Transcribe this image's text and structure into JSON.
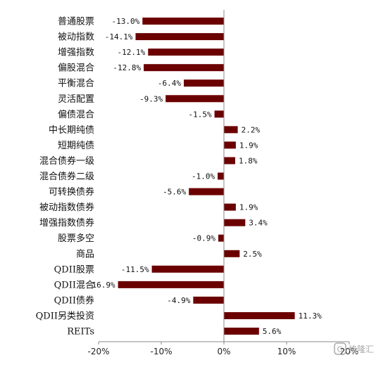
{
  "chart_data": {
    "type": "bar",
    "orientation": "horizontal",
    "categories": [
      "普通股票",
      "被动指数",
      "增强指数",
      "偏股混合",
      "平衡混合",
      "灵活配置",
      "偏债混合",
      "中长期纯债",
      "短期纯债",
      "混合债券一级",
      "混合债券二级",
      "可转换债券",
      "被动指数债券",
      "增强指数债券",
      "股票多空",
      "商品",
      "QDII股票",
      "QDII混合",
      "QDII债券",
      "QDII另类投资",
      "REITs"
    ],
    "values": [
      -13.0,
      -14.1,
      -12.1,
      -12.8,
      -6.4,
      -9.3,
      -1.5,
      2.2,
      1.9,
      1.8,
      -1.0,
      -5.6,
      1.9,
      3.4,
      -0.9,
      2.5,
      -11.5,
      -16.9,
      -4.9,
      11.3,
      5.6
    ],
    "data_labels": [
      "-13.0%",
      "-14.1%",
      "-12.1%",
      "-12.8%",
      "-6.4%",
      "-9.3%",
      "-1.5%",
      "2.2%",
      "1.9%",
      "1.8%",
      "-1.0%",
      "-5.6%",
      "1.9%",
      "3.4%",
      "-0.9%",
      "2.5%",
      "-11.5%",
      "-16.9%",
      "-4.9%",
      "11.3%",
      "5.6%"
    ],
    "xlim": [
      -20,
      20
    ],
    "xticks": [
      -20,
      -10,
      0,
      10,
      20
    ],
    "xtick_labels": [
      "-20%",
      "-10%",
      "0%",
      "10%",
      "20%"
    ],
    "bar_color": "#6b0000",
    "grid": false,
    "legend": "none"
  },
  "watermark": {
    "text": "格隆汇",
    "icon": "glh-logo-icon"
  }
}
